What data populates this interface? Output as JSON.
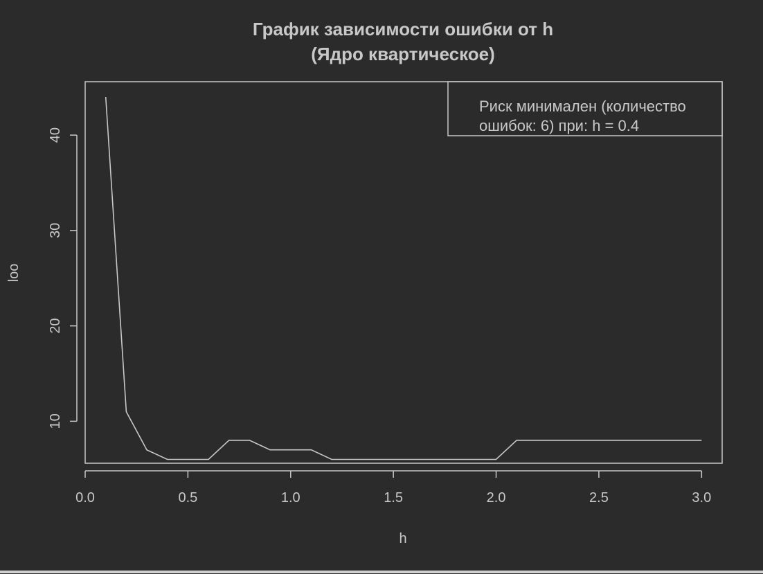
{
  "colors": {
    "background": "#2b2b2b",
    "foreground": "#c8c8c8",
    "line": "#c8c8c8"
  },
  "chart_data": {
    "type": "line",
    "title": "График зависимости ошибки от h",
    "subtitle": "(Ядро квартическое)",
    "xlabel": "h",
    "ylabel": "loo",
    "xlim": [
      0.0,
      3.1
    ],
    "ylim": [
      5.6,
      45.6
    ],
    "x_ticks": [
      0.0,
      0.5,
      1.0,
      1.5,
      2.0,
      2.5,
      3.0
    ],
    "x_tick_labels": [
      "0.0",
      "0.5",
      "1.0",
      "1.5",
      "2.0",
      "2.5",
      "3.0"
    ],
    "y_ticks": [
      10,
      20,
      30,
      40
    ],
    "y_tick_labels": [
      "10",
      "20",
      "30",
      "40"
    ],
    "grid": false,
    "x": [
      0.1,
      0.2,
      0.3,
      0.4,
      0.5,
      0.6,
      0.7,
      0.8,
      0.9,
      1.0,
      1.1,
      1.2,
      1.3,
      1.4,
      1.5,
      1.6,
      1.7,
      1.8,
      1.9,
      2.0,
      2.1,
      2.2,
      2.3,
      2.4,
      2.5,
      2.6,
      2.7,
      2.8,
      2.9,
      3.0
    ],
    "y": [
      44,
      11,
      7,
      6,
      6,
      6,
      8,
      8,
      7,
      7,
      7,
      6,
      6,
      6,
      6,
      6,
      6,
      6,
      6,
      6,
      8,
      8,
      8,
      8,
      8,
      8,
      8,
      8,
      8,
      8
    ],
    "legend": {
      "position": "top-right",
      "lines": [
        "Риск минимален (количество",
        "ошибок: 6) при: h = 0.4"
      ]
    }
  }
}
